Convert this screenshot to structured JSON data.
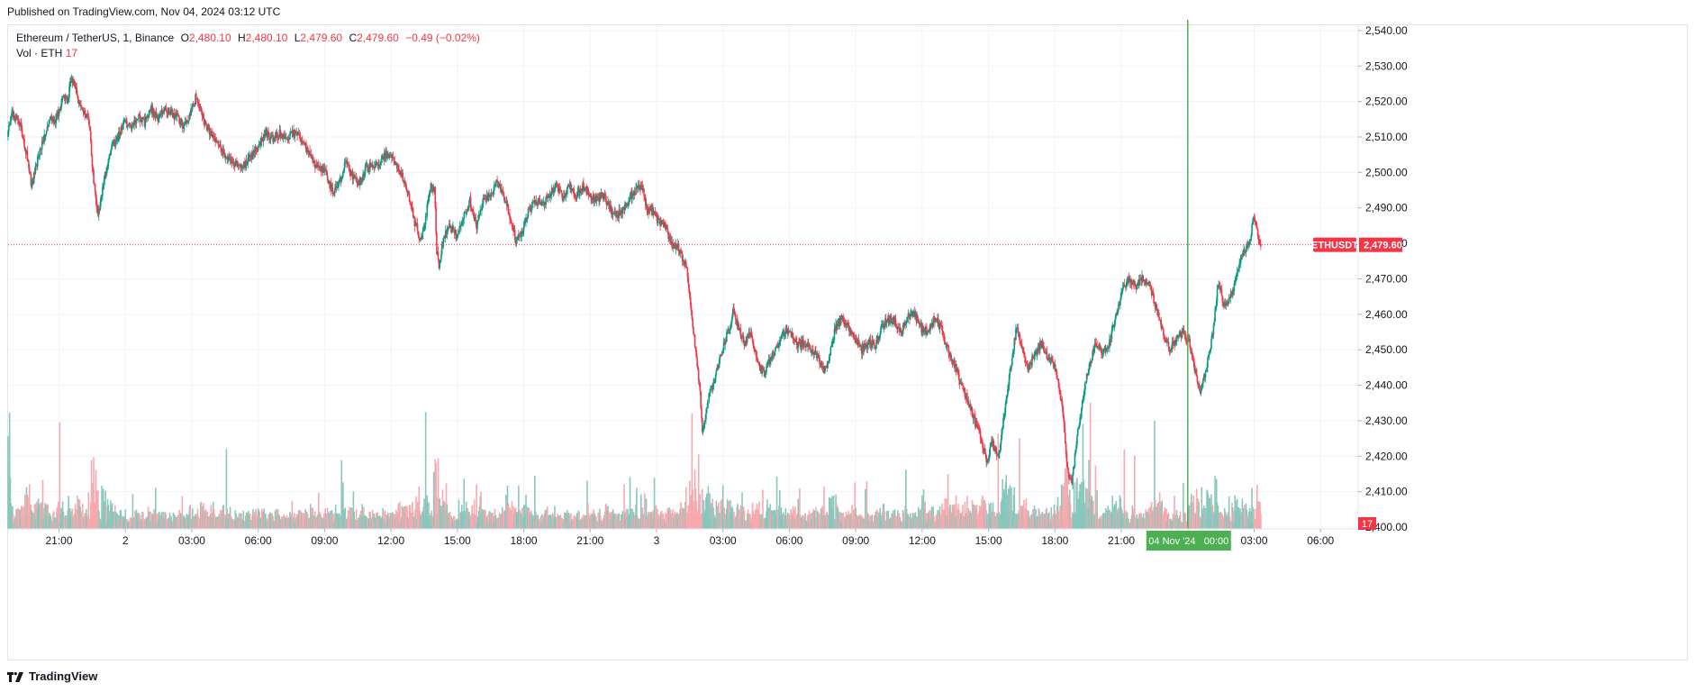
{
  "header": {
    "published": "Published on TradingView.com, Nov 04, 2024 03:12 UTC"
  },
  "legend": {
    "symbol": "Ethereum / TetherUS, 1, Binance",
    "o_label": "O",
    "o_value": "2,480.10",
    "h_label": "H",
    "h_value": "2,480.10",
    "l_label": "L",
    "l_value": "2,479.60",
    "c_label": "C",
    "c_value": "2,479.60",
    "change": "−0.49 (−0.02%)",
    "vol_label": "Vol · ETH",
    "vol_value": "17"
  },
  "price_tag": {
    "ticker": "ETHUSDT",
    "price": "2,479.60",
    "color": "#f23645"
  },
  "volume_tag": {
    "value": "17",
    "color": "#f23645"
  },
  "crosshair": {
    "time_label": "04 Nov '24   00:00",
    "color": "#4caf50"
  },
  "footer": {
    "brand": "TradingView"
  },
  "colors": {
    "up": "#089981",
    "down": "#f23645",
    "grid": "#f0f3fa",
    "vol_up": "#89c7bc",
    "vol_down": "#f7a9ae"
  },
  "chart_data": {
    "type": "candlestick",
    "symbol": "Ethereum / TetherUS",
    "interval": "1",
    "exchange": "Binance",
    "y_ticks": [
      "2,540.00",
      "2,530.00",
      "2,520.00",
      "2,510.00",
      "2,500.00",
      "2,490.00",
      "2,480.00",
      "2,470.00",
      "2,460.00",
      "2,450.00",
      "2,440.00",
      "2,430.00",
      "2,420.00",
      "2,410.00",
      "2,400.00"
    ],
    "y_tick_values": [
      2540,
      2530,
      2520,
      2510,
      2500,
      2490,
      2480,
      2470,
      2460,
      2450,
      2440,
      2430,
      2420,
      2410,
      2400
    ],
    "ylim": [
      2399.5,
      2541.5
    ],
    "x_ticks": [
      "21:00",
      "2",
      "03:00",
      "06:00",
      "09:00",
      "12:00",
      "15:00",
      "18:00",
      "21:00",
      "3",
      "03:00",
      "06:00",
      "09:00",
      "12:00",
      "15:00",
      "18:00",
      "21:00",
      "03:00",
      "06:00"
    ],
    "x_tick_hours": [
      21,
      24,
      27,
      30,
      33,
      36,
      39,
      42,
      45,
      48,
      51,
      54,
      57,
      60,
      63,
      66,
      69,
      75,
      78
    ],
    "x_range_hours": [
      18.7,
      79.7
    ],
    "crosshair_hour": 72.0,
    "last_price": 2479.6,
    "price_path": [
      [
        18.7,
        2510
      ],
      [
        18.9,
        2517
      ],
      [
        19.3,
        2513
      ],
      [
        19.6,
        2504
      ],
      [
        19.8,
        2496
      ],
      [
        20.0,
        2502
      ],
      [
        20.2,
        2507
      ],
      [
        20.4,
        2511
      ],
      [
        20.6,
        2515
      ],
      [
        20.8,
        2514
      ],
      [
        21.0,
        2517
      ],
      [
        21.2,
        2521
      ],
      [
        21.4,
        2520
      ],
      [
        21.6,
        2526
      ],
      [
        21.8,
        2523
      ],
      [
        22.0,
        2518
      ],
      [
        22.2,
        2517
      ],
      [
        22.4,
        2514
      ],
      [
        22.6,
        2497
      ],
      [
        22.8,
        2488
      ],
      [
        22.95,
        2493
      ],
      [
        23.1,
        2499
      ],
      [
        23.4,
        2507
      ],
      [
        23.7,
        2510
      ],
      [
        24.0,
        2514
      ],
      [
        24.3,
        2513
      ],
      [
        24.6,
        2516
      ],
      [
        24.9,
        2514
      ],
      [
        25.2,
        2518
      ],
      [
        25.5,
        2515
      ],
      [
        25.8,
        2518
      ],
      [
        26.1,
        2517
      ],
      [
        26.4,
        2515
      ],
      [
        26.7,
        2513
      ],
      [
        27.0,
        2517
      ],
      [
        27.2,
        2521
      ],
      [
        27.4,
        2518
      ],
      [
        27.7,
        2513
      ],
      [
        28.0,
        2510
      ],
      [
        28.3,
        2508
      ],
      [
        28.6,
        2504
      ],
      [
        28.9,
        2503
      ],
      [
        29.2,
        2501
      ],
      [
        29.5,
        2503
      ],
      [
        29.8,
        2505
      ],
      [
        30.1,
        2508
      ],
      [
        30.4,
        2511
      ],
      [
        30.7,
        2509
      ],
      [
        31.0,
        2511
      ],
      [
        31.3,
        2509
      ],
      [
        31.6,
        2511
      ],
      [
        31.9,
        2510
      ],
      [
        32.2,
        2507
      ],
      [
        32.5,
        2503
      ],
      [
        32.8,
        2501
      ],
      [
        33.1,
        2500
      ],
      [
        33.4,
        2494
      ],
      [
        33.7,
        2497
      ],
      [
        34.0,
        2503
      ],
      [
        34.3,
        2499
      ],
      [
        34.6,
        2497
      ],
      [
        34.9,
        2501
      ],
      [
        35.2,
        2502
      ],
      [
        35.5,
        2503
      ],
      [
        35.8,
        2505
      ],
      [
        36.0,
        2505
      ],
      [
        36.3,
        2502
      ],
      [
        36.6,
        2498
      ],
      [
        36.9,
        2492
      ],
      [
        37.1,
        2486
      ],
      [
        37.4,
        2481
      ],
      [
        37.6,
        2487
      ],
      [
        37.8,
        2496
      ],
      [
        38.0,
        2495
      ],
      [
        38.1,
        2478
      ],
      [
        38.2,
        2474
      ],
      [
        38.4,
        2481
      ],
      [
        38.7,
        2485
      ],
      [
        39.0,
        2482
      ],
      [
        39.3,
        2487
      ],
      [
        39.6,
        2492
      ],
      [
        39.9,
        2485
      ],
      [
        40.2,
        2492
      ],
      [
        40.5,
        2493
      ],
      [
        40.8,
        2497
      ],
      [
        41.1,
        2494
      ],
      [
        41.4,
        2488
      ],
      [
        41.7,
        2480
      ],
      [
        42.0,
        2484
      ],
      [
        42.3,
        2490
      ],
      [
        42.6,
        2492
      ],
      [
        42.9,
        2491
      ],
      [
        43.2,
        2494
      ],
      [
        43.5,
        2496
      ],
      [
        43.8,
        2493
      ],
      [
        44.1,
        2496
      ],
      [
        44.4,
        2493
      ],
      [
        44.7,
        2496
      ],
      [
        45.0,
        2494
      ],
      [
        45.3,
        2492
      ],
      [
        45.6,
        2494
      ],
      [
        45.9,
        2490
      ],
      [
        46.2,
        2488
      ],
      [
        46.5,
        2489
      ],
      [
        46.8,
        2493
      ],
      [
        47.1,
        2495
      ],
      [
        47.4,
        2496
      ],
      [
        47.6,
        2489
      ],
      [
        47.8,
        2490
      ],
      [
        48.1,
        2486
      ],
      [
        48.4,
        2485
      ],
      [
        48.7,
        2480
      ],
      [
        49.0,
        2479
      ],
      [
        49.2,
        2476
      ],
      [
        49.4,
        2473
      ],
      [
        49.6,
        2461
      ],
      [
        49.8,
        2450
      ],
      [
        50.0,
        2438
      ],
      [
        50.1,
        2426
      ],
      [
        50.2,
        2430
      ],
      [
        50.4,
        2437
      ],
      [
        50.6,
        2440
      ],
      [
        50.8,
        2445
      ],
      [
        51.0,
        2450
      ],
      [
        51.2,
        2454
      ],
      [
        51.4,
        2458
      ],
      [
        51.5,
        2461
      ],
      [
        51.7,
        2457
      ],
      [
        52.0,
        2452
      ],
      [
        52.3,
        2455
      ],
      [
        52.6,
        2446
      ],
      [
        52.9,
        2443
      ],
      [
        53.2,
        2448
      ],
      [
        53.5,
        2451
      ],
      [
        53.8,
        2455
      ],
      [
        54.1,
        2455
      ],
      [
        54.4,
        2451
      ],
      [
        54.7,
        2452
      ],
      [
        55.0,
        2450
      ],
      [
        55.3,
        2448
      ],
      [
        55.6,
        2444
      ],
      [
        55.8,
        2447
      ],
      [
        56.1,
        2456
      ],
      [
        56.4,
        2459
      ],
      [
        56.7,
        2456
      ],
      [
        57.0,
        2453
      ],
      [
        57.3,
        2450
      ],
      [
        57.6,
        2452
      ],
      [
        57.9,
        2451
      ],
      [
        58.2,
        2456
      ],
      [
        58.5,
        2459
      ],
      [
        58.8,
        2458
      ],
      [
        59.1,
        2455
      ],
      [
        59.4,
        2459
      ],
      [
        59.7,
        2460
      ],
      [
        60.0,
        2456
      ],
      [
        60.3,
        2455
      ],
      [
        60.6,
        2459
      ],
      [
        60.9,
        2456
      ],
      [
        61.2,
        2450
      ],
      [
        61.5,
        2446
      ],
      [
        61.8,
        2440
      ],
      [
        62.1,
        2436
      ],
      [
        62.4,
        2430
      ],
      [
        62.7,
        2425
      ],
      [
        62.95,
        2418
      ],
      [
        63.2,
        2424
      ],
      [
        63.5,
        2420
      ],
      [
        63.8,
        2435
      ],
      [
        64.1,
        2448
      ],
      [
        64.3,
        2457
      ],
      [
        64.5,
        2452
      ],
      [
        64.8,
        2445
      ],
      [
        65.1,
        2448
      ],
      [
        65.4,
        2452
      ],
      [
        65.7,
        2448
      ],
      [
        66.0,
        2446
      ],
      [
        66.2,
        2440
      ],
      [
        66.4,
        2432
      ],
      [
        66.6,
        2416
      ],
      [
        66.8,
        2412
      ],
      [
        67.0,
        2424
      ],
      [
        67.2,
        2432
      ],
      [
        67.4,
        2440
      ],
      [
        67.6,
        2446
      ],
      [
        67.9,
        2452
      ],
      [
        68.2,
        2449
      ],
      [
        68.5,
        2452
      ],
      [
        68.8,
        2460
      ],
      [
        69.1,
        2468
      ],
      [
        69.4,
        2470
      ],
      [
        69.7,
        2468
      ],
      [
        70.0,
        2470
      ],
      [
        70.3,
        2468
      ],
      [
        70.6,
        2462
      ],
      [
        70.9,
        2455
      ],
      [
        71.2,
        2450
      ],
      [
        71.5,
        2453
      ],
      [
        71.8,
        2455
      ],
      [
        72.1,
        2452
      ],
      [
        72.35,
        2445
      ],
      [
        72.6,
        2438
      ],
      [
        72.8,
        2443
      ],
      [
        73.1,
        2452
      ],
      [
        73.4,
        2468
      ],
      [
        73.7,
        2463
      ],
      [
        74.0,
        2465
      ],
      [
        74.3,
        2473
      ],
      [
        74.6,
        2478
      ],
      [
        74.9,
        2482
      ],
      [
        75.0,
        2488
      ],
      [
        75.15,
        2484
      ],
      [
        75.3,
        2479.6
      ]
    ],
    "volume_ylim": [
      0,
      500
    ]
  }
}
